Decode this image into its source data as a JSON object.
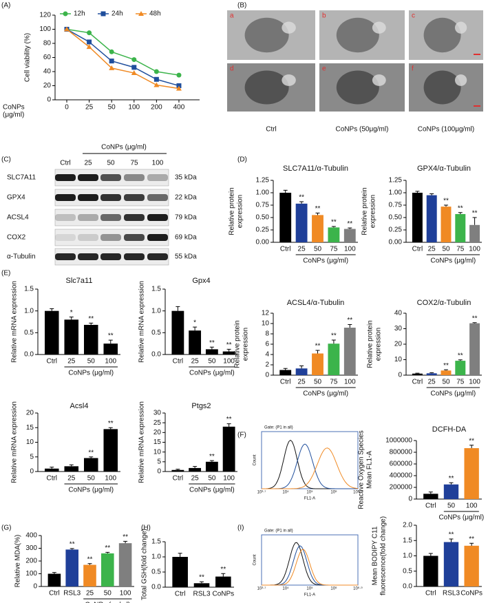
{
  "panels": [
    "(A)",
    "(B)",
    "(C)",
    "(D)",
    "(E)",
    "(F)",
    "(G)",
    "(H)",
    "(I)"
  ],
  "em": {
    "tiles": [
      "a",
      "b",
      "c",
      "d",
      "e",
      "f"
    ],
    "captions": [
      "Ctrl",
      "CoNPs (50μg/ml)",
      "CoNPs (100μg/ml)"
    ]
  },
  "blot": {
    "header": "CoNPs (μg/ml)",
    "lanes": [
      "Ctrl",
      "25",
      "50",
      "75",
      "100"
    ],
    "rows": [
      {
        "name": "SLC7A11",
        "size": "35 kDa"
      },
      {
        "name": "GPX4",
        "size": "22 kDa"
      },
      {
        "name": "ACSL4",
        "size": "79 kDa"
      },
      {
        "name": "COX2",
        "size": "69 kDa"
      },
      {
        "name": "α-Tubulin",
        "size": "55 kDa"
      }
    ]
  },
  "flow": [
    {
      "gate": "Gate: (P1 in all)",
      "ylabel": "Count",
      "xlabel": "FL1-A",
      "xtick_labels": [
        "10³·⁷",
        "10⁴",
        "10⁵",
        "10⁶",
        "10⁶·⁹"
      ]
    },
    {
      "gate": "Gate: (P1 in all)",
      "ylabel": "Count",
      "xlabel": "FL1-A",
      "xtick_labels": [
        "10³·⁷",
        "10⁴",
        "10⁵",
        "10⁶",
        "10⁶·⁹"
      ]
    }
  ],
  "chart_data": [
    {
      "type": "line",
      "ylabel": [
        "Cell viability (%)"
      ],
      "xlabel": [
        "CoNPs",
        "(μg/ml)"
      ],
      "categories": [
        "0",
        "25",
        "50",
        "100",
        "200",
        "400"
      ],
      "series": [
        {
          "name": "12h",
          "color": "#3cb44b",
          "marker": "circle",
          "values": [
            100,
            95,
            68,
            57,
            40,
            35
          ]
        },
        {
          "name": "24h",
          "color": "#1f4e9c",
          "marker": "square",
          "values": [
            100,
            82,
            55,
            46,
            29,
            20
          ]
        },
        {
          "name": "48h",
          "color": "#f08a24",
          "marker": "triangle",
          "values": [
            100,
            75,
            45,
            38,
            21,
            16
          ]
        }
      ],
      "ylim": [
        0,
        120
      ],
      "yticks": [
        0,
        20,
        40,
        60,
        80,
        100,
        120
      ]
    },
    {
      "type": "bar",
      "title": "SLC7A11/α-Tubulin",
      "ylabel": [
        "Relative protein",
        "expression"
      ],
      "xlabel": "CoNPs (μg/ml)",
      "categories": [
        "Ctrl",
        "25",
        "50",
        "75",
        "100"
      ],
      "values": [
        1.0,
        0.78,
        0.55,
        0.3,
        0.27
      ],
      "errors": [
        0.05,
        0.04,
        0.04,
        0.02,
        0.02
      ],
      "sig": [
        null,
        "**",
        "**",
        "**",
        "**"
      ],
      "colors": [
        "#000000",
        "#1f3f99",
        "#f08a24",
        "#3cb44b",
        "#7f7f7f"
      ],
      "ylim": [
        0,
        1.25
      ],
      "yticks": [
        {
          "value": 0,
          "label": "0.00"
        },
        {
          "value": 0.25,
          "label": "0.25"
        },
        {
          "value": 0.5,
          "label": "0.50"
        },
        {
          "value": 0.75,
          "label": "0.75"
        },
        {
          "value": 1.0,
          "label": "1.00"
        },
        {
          "value": 1.25,
          "label": "1.25"
        }
      ]
    },
    {
      "type": "bar",
      "title": "GPX4/α-Tubulin",
      "ylabel": [
        "Relative protein",
        "expression"
      ],
      "xlabel": "CoNPs (μg/ml)",
      "categories": [
        "Ctrl",
        "25",
        "50",
        "75",
        "100"
      ],
      "values": [
        1.0,
        0.95,
        0.72,
        0.57,
        0.35
      ],
      "errors": [
        0.03,
        0.03,
        0.03,
        0.03,
        0.15
      ],
      "sig": [
        null,
        null,
        "**",
        "**",
        "**"
      ],
      "colors": [
        "#000000",
        "#1f3f99",
        "#f08a24",
        "#3cb44b",
        "#7f7f7f"
      ],
      "ylim": [
        0,
        1.25
      ],
      "yticks": [
        {
          "value": 0,
          "label": "0.00"
        },
        {
          "value": 0.25,
          "label": "0.25"
        },
        {
          "value": 0.5,
          "label": "0.50"
        },
        {
          "value": 0.75,
          "label": "0.75"
        },
        {
          "value": 1.0,
          "label": "1.00"
        },
        {
          "value": 1.25,
          "label": "1.25"
        }
      ]
    },
    {
      "type": "bar",
      "title": "ACSL4/α-Tubulin",
      "ylabel": [
        "Relative protein",
        "expression"
      ],
      "xlabel": "CoNPs (μg/ml)",
      "categories": [
        "Ctrl",
        "25",
        "50",
        "75",
        "100"
      ],
      "values": [
        1.0,
        1.3,
        4.2,
        6.1,
        9.2
      ],
      "errors": [
        0.3,
        0.5,
        0.6,
        0.7,
        0.6
      ],
      "sig": [
        null,
        null,
        "**",
        "**",
        "**"
      ],
      "colors": [
        "#000000",
        "#1f3f99",
        "#f08a24",
        "#3cb44b",
        "#7f7f7f"
      ],
      "ylim": [
        0,
        12
      ],
      "yticks": [
        0,
        2,
        4,
        6,
        8,
        10,
        12
      ]
    },
    {
      "type": "bar",
      "title": "COX2/α-Tubulin",
      "ylabel": [
        "Relative protein",
        "expression"
      ],
      "xlabel": "CoNPs (μg/ml)",
      "categories": [
        "Ctrl",
        "25",
        "50",
        "75",
        "100"
      ],
      "values": [
        1.0,
        1.2,
        3.0,
        9.3,
        33.5
      ],
      "errors": [
        0.3,
        0.4,
        0.5,
        0.6,
        0.4
      ],
      "sig": [
        null,
        null,
        "**",
        "**",
        "**"
      ],
      "colors": [
        "#000000",
        "#1f3f99",
        "#f08a24",
        "#3cb44b",
        "#7f7f7f"
      ],
      "ylim": [
        0,
        40
      ],
      "yticks": [
        0,
        10,
        20,
        30,
        40
      ]
    },
    {
      "type": "bar",
      "title": "Slc7a11",
      "ylabel": [
        "Relative mRNA expression"
      ],
      "xlabel": "CoNPs (μg/ml)",
      "categories": [
        "Ctrl",
        "25",
        "50",
        "100"
      ],
      "values": [
        1.0,
        0.8,
        0.68,
        0.25
      ],
      "errors": [
        0.05,
        0.06,
        0.04,
        0.08
      ],
      "sig": [
        null,
        "*",
        "**",
        "**"
      ],
      "colors": [
        "#000000",
        "#000000",
        "#000000",
        "#000000"
      ],
      "ylim": [
        0,
        1.5
      ],
      "yticks": [
        {
          "value": 0,
          "label": "0.0"
        },
        {
          "value": 0.5,
          "label": "0.5"
        },
        {
          "value": 1.0,
          "label": "1.0"
        },
        {
          "value": 1.5,
          "label": "1.5"
        }
      ]
    },
    {
      "type": "bar",
      "title": "Gpx4",
      "ylabel": [
        "Relative mRNA expression"
      ],
      "xlabel": "CoNPs (μg/ml)",
      "categories": [
        "Ctrl",
        "25",
        "50",
        "100"
      ],
      "values": [
        1.0,
        0.55,
        0.12,
        0.07
      ],
      "errors": [
        0.1,
        0.08,
        0.05,
        0.05
      ],
      "sig": [
        null,
        "*",
        "**",
        "**"
      ],
      "colors": [
        "#000000",
        "#000000",
        "#000000",
        "#000000"
      ],
      "ylim": [
        0,
        1.5
      ],
      "yticks": [
        {
          "value": 0,
          "label": "0.0"
        },
        {
          "value": 0.5,
          "label": "0.5"
        },
        {
          "value": 1.0,
          "label": "1.0"
        },
        {
          "value": 1.5,
          "label": "1.5"
        }
      ]
    },
    {
      "type": "bar",
      "title": "Acsl4",
      "ylabel": [
        "Relative mRNA expression"
      ],
      "xlabel": "CoNPs (μg/ml)",
      "categories": [
        "Ctrl",
        "25",
        "50",
        "100"
      ],
      "values": [
        1.0,
        1.8,
        4.6,
        14.5
      ],
      "errors": [
        0.5,
        0.5,
        0.4,
        0.5
      ],
      "sig": [
        null,
        null,
        "**",
        "**"
      ],
      "colors": [
        "#000000",
        "#000000",
        "#000000",
        "#000000"
      ],
      "ylim": [
        0,
        20
      ],
      "yticks": [
        0,
        5,
        10,
        15,
        20
      ]
    },
    {
      "type": "bar",
      "title": "Ptgs2",
      "ylabel": [
        "Relative mRNA expression"
      ],
      "xlabel": "CoNPs (μg/ml)",
      "categories": [
        "Ctrl",
        "25",
        "50",
        "100"
      ],
      "values": [
        0.8,
        1.8,
        5.0,
        23.0
      ],
      "errors": [
        0.4,
        0.8,
        0.6,
        1.5
      ],
      "sig": [
        null,
        null,
        "**",
        "**"
      ],
      "colors": [
        "#000000",
        "#000000",
        "#000000",
        "#000000"
      ],
      "ylim": [
        0,
        30
      ],
      "yticks": [
        0,
        5,
        10,
        15,
        20,
        25,
        30
      ]
    },
    {
      "type": "bar",
      "title": "DCFH-DA",
      "ylabel": [
        "Reactive Oxygen Species",
        "Mean FL1-A"
      ],
      "xlabel": "CoNPs (μg/ml)",
      "categories": [
        "Ctrl",
        "50",
        "100"
      ],
      "values": [
        90000,
        250000,
        870000
      ],
      "errors": [
        30000,
        30000,
        50000
      ],
      "sig": [
        null,
        "**",
        "**"
      ],
      "colors": [
        "#000000",
        "#1f3f99",
        "#f08a24"
      ],
      "ylim": [
        0,
        1000000
      ],
      "yticks": [
        0,
        200000,
        400000,
        600000,
        800000,
        1000000
      ]
    },
    {
      "type": "bar",
      "ylabel": [
        "Relative MDA(%)"
      ],
      "xlabel": "CoNPs (μg/ml)",
      "categories": [
        "Ctrl",
        "RSL3",
        "25",
        "50",
        "100"
      ],
      "values": [
        100,
        290,
        170,
        260,
        340
      ],
      "errors": [
        10,
        8,
        10,
        8,
        15
      ],
      "sig": [
        null,
        "**",
        "**",
        "**",
        "**"
      ],
      "colors": [
        "#000000",
        "#1f3f99",
        "#f08a24",
        "#3cb44b",
        "#7f7f7f"
      ],
      "ylim": [
        0,
        400
      ],
      "yticks": [
        0,
        100,
        200,
        300,
        400
      ]
    },
    {
      "type": "bar",
      "ylabel": [
        "Total GSH(fold change)"
      ],
      "categories": [
        "Ctrl",
        "RSL3",
        "CoNPs"
      ],
      "values": [
        1.0,
        0.13,
        0.35
      ],
      "errors": [
        0.12,
        0.05,
        0.1
      ],
      "sig": [
        null,
        "**",
        "**"
      ],
      "colors": [
        "#000000",
        "#000000",
        "#000000"
      ],
      "ylim": [
        0,
        1.5
      ],
      "yticks": [
        {
          "value": 0,
          "label": "0.0"
        },
        {
          "value": 0.5,
          "label": "0.5"
        },
        {
          "value": 1.0,
          "label": "1.0"
        },
        {
          "value": 1.5,
          "label": "1.5"
        }
      ]
    },
    {
      "type": "bar",
      "ylabel": [
        "Mean BODIPY C11",
        "fluorescence(fold change)"
      ],
      "categories": [
        "Ctrl",
        "RSL3",
        "CoNPs"
      ],
      "values": [
        1.0,
        1.45,
        1.33
      ],
      "errors": [
        0.08,
        0.1,
        0.08
      ],
      "sig": [
        null,
        "**",
        "**"
      ],
      "colors": [
        "#000000",
        "#1f3f99",
        "#f08a24"
      ],
      "ylim": [
        0,
        2.0
      ],
      "yticks": [
        {
          "value": 0,
          "label": "0.0"
        },
        {
          "value": 0.5,
          "label": "0.5"
        },
        {
          "value": 1.0,
          "label": "1.0"
        },
        {
          "value": 1.5,
          "label": "1.5"
        },
        {
          "value": 2.0,
          "label": "2.0"
        }
      ]
    }
  ]
}
